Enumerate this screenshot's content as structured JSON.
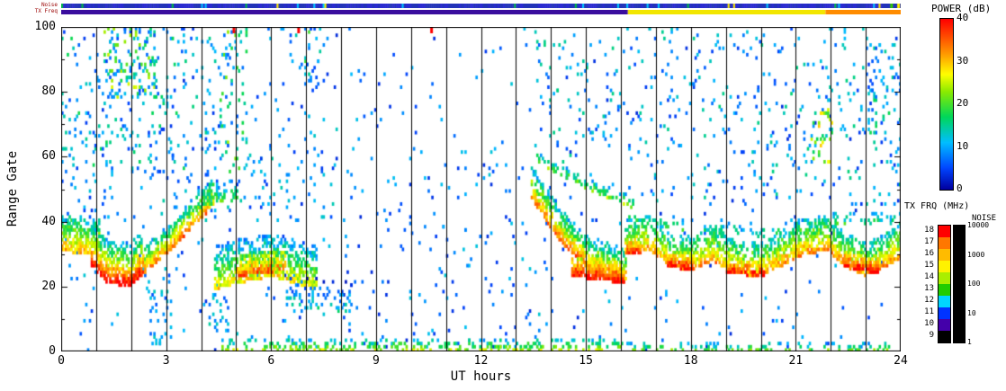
{
  "chart_data": {
    "type": "heatmap",
    "title": "",
    "xlabel": "UT hours",
    "ylabel": "Range Gate",
    "xlim": [
      0,
      24
    ],
    "ylim": [
      0,
      100
    ],
    "xticks": [
      0,
      3,
      6,
      9,
      12,
      15,
      18,
      21,
      24
    ],
    "yticks": [
      0,
      20,
      40,
      60,
      80,
      100
    ],
    "grid": "vertical black line every 1 hour",
    "seed": 20240608,
    "power_colormap": [
      [
        0,
        0,
        0,
        160
      ],
      [
        5,
        0,
        70,
        255
      ],
      [
        11,
        0,
        190,
        255
      ],
      [
        17,
        0,
        215,
        90
      ],
      [
        23,
        140,
        235,
        0
      ],
      [
        27,
        255,
        255,
        0
      ],
      [
        32,
        255,
        150,
        0
      ],
      [
        40,
        255,
        0,
        0
      ]
    ],
    "colorbars": {
      "power": {
        "label": "POWER (dB)",
        "min": 0,
        "max": 40,
        "ticks": [
          40,
          30,
          20,
          10,
          0
        ]
      },
      "tx_frq": {
        "label": "TX FRQ (MHz)",
        "ticks": [
          18,
          17,
          16,
          15,
          14,
          13,
          12,
          11,
          10,
          9
        ],
        "colors_top_to_bottom": [
          "#ff0000",
          "#ff7700",
          "#ffbb00",
          "#fff200",
          "#aaee00",
          "#22cc00",
          "#00d5ff",
          "#0033ff",
          "#4400aa",
          "#000000"
        ]
      },
      "noise": {
        "label": "NOISE",
        "ticks": [
          10000,
          1000,
          100,
          10,
          1
        ],
        "bar_color": "#000000"
      }
    },
    "top_strips": {
      "noise_label": "Noise",
      "tx_freq_label": "TX Freq",
      "noise_base_colors": [
        "#2a2ad0",
        "#2233b8"
      ],
      "noise_marks": [
        {
          "x": 23.7,
          "color": "#33cc00"
        },
        {
          "x": 23.9,
          "color": "#ffee00"
        }
      ],
      "tx_freq_segments": [
        {
          "from": 0,
          "to": 16.2,
          "color": "#3a0d9e"
        },
        {
          "from": 16.2,
          "to": 21.85,
          "color": "#f2e600"
        },
        {
          "from": 21.85,
          "to": 24,
          "color": "#ff8c00"
        }
      ]
    },
    "top_marks": [
      {
        "x": 4.9,
        "color": "#ff0000"
      },
      {
        "x": 6.75,
        "color": "#ff0000"
      },
      {
        "x": 10.55,
        "color": "#ff0000"
      }
    ],
    "features": [
      {
        "x0": 0,
        "x1": 1.15,
        "pts": [
          [
            0,
            31
          ],
          [
            1.15,
            29
          ]
        ],
        "span": 11,
        "peak": 31,
        "edge": 12,
        "density": 0.8
      },
      {
        "x0": 0.85,
        "x1": 2.35,
        "pts": [
          [
            0.85,
            26
          ],
          [
            1.3,
            21
          ],
          [
            1.9,
            20
          ],
          [
            2.35,
            24
          ]
        ],
        "span": 13,
        "peak": 40,
        "edge": 10,
        "density": 0.85
      },
      {
        "x0": 2.35,
        "x1": 4.35,
        "pts": [
          [
            2.35,
            24
          ],
          [
            3.0,
            30
          ],
          [
            3.7,
            38
          ],
          [
            4.35,
            45
          ]
        ],
        "span": 8,
        "peak": 33,
        "edge": 12,
        "density": 0.8
      },
      {
        "x0": 3.9,
        "x1": 5.1,
        "pts": [
          [
            3.9,
            44
          ],
          [
            5.1,
            47
          ]
        ],
        "span": 6,
        "peak": 20,
        "edge": 8,
        "density": 0.45
      },
      {
        "x0": 4.35,
        "x1": 7.3,
        "pts": [
          [
            4.35,
            19
          ],
          [
            5.0,
            21
          ],
          [
            6.0,
            23
          ],
          [
            7.3,
            19
          ]
        ],
        "span": 13,
        "peak": 28,
        "edge": 8,
        "density": 0.75
      },
      {
        "x0": 5.0,
        "x1": 6.4,
        "pts": [
          [
            5.0,
            23
          ],
          [
            6.4,
            25
          ]
        ],
        "span": 6,
        "peak": 35,
        "edge": 20,
        "density": 0.8
      },
      {
        "x0": 6.4,
        "x1": 8.3,
        "pts": [
          [
            6.4,
            14
          ],
          [
            8.3,
            12
          ]
        ],
        "span": 9,
        "peak": 13,
        "edge": 4,
        "density": 0.3
      },
      {
        "x0": 13.4,
        "x1": 16.15,
        "pts": [
          [
            13.4,
            47
          ],
          [
            14.3,
            33
          ],
          [
            15.1,
            25
          ],
          [
            16.15,
            21
          ]
        ],
        "span": 10,
        "peak": 34,
        "edge": 10,
        "density": 0.8
      },
      {
        "x0": 14.6,
        "x1": 16.1,
        "pts": [
          [
            14.6,
            23
          ],
          [
            16.1,
            21
          ]
        ],
        "span": 6,
        "peak": 40,
        "edge": 24,
        "density": 0.9
      },
      {
        "x0": 13.6,
        "x1": 16.35,
        "pts": [
          [
            13.6,
            58
          ],
          [
            15.0,
            50
          ],
          [
            16.35,
            44
          ]
        ],
        "span": 3,
        "peak": 21,
        "edge": 10,
        "density": 0.5
      },
      {
        "x0": 16.1,
        "x1": 24,
        "pts": [
          [
            16.1,
            30
          ],
          [
            16.8,
            31
          ],
          [
            17.4,
            26
          ],
          [
            18.0,
            25
          ],
          [
            18.6,
            28
          ],
          [
            19.2,
            24
          ],
          [
            19.9,
            23
          ],
          [
            20.5,
            26
          ],
          [
            21.2,
            30
          ],
          [
            21.9,
            31
          ],
          [
            22.4,
            26
          ],
          [
            23.0,
            23
          ],
          [
            23.5,
            26
          ],
          [
            24,
            29
          ]
        ],
        "span": 10,
        "peak": 32,
        "edge": 12,
        "density": 0.8
      },
      {
        "x0": 16.15,
        "x1": 16.65,
        "pts": [
          [
            16.15,
            30
          ],
          [
            16.65,
            30
          ]
        ],
        "span": 4,
        "peak": 38,
        "edge": 26,
        "density": 0.85
      },
      {
        "x0": 17.3,
        "x1": 18.05,
        "pts": [
          [
            17.3,
            26
          ],
          [
            18.05,
            25
          ]
        ],
        "span": 4,
        "peak": 40,
        "edge": 26,
        "density": 0.85
      },
      {
        "x0": 19.0,
        "x1": 20.1,
        "pts": [
          [
            19.0,
            24
          ],
          [
            20.1,
            23
          ]
        ],
        "span": 4,
        "peak": 40,
        "edge": 26,
        "density": 0.85
      },
      {
        "x0": 22.35,
        "x1": 23.35,
        "pts": [
          [
            22.35,
            26
          ],
          [
            23.35,
            24
          ]
        ],
        "span": 4,
        "peak": 40,
        "edge": 26,
        "density": 0.85
      },
      {
        "x0": 16.2,
        "x1": 24,
        "pts": [
          [
            16.2,
            40
          ],
          [
            18,
            37
          ],
          [
            20,
            35
          ],
          [
            22,
            39
          ],
          [
            24,
            39
          ]
        ],
        "span": 4,
        "peak": 17,
        "edge": 8,
        "density": 0.22
      },
      {
        "x0": 4.6,
        "x1": 16.1,
        "pts": [
          [
            4.6,
            0
          ],
          [
            16.1,
            0
          ]
        ],
        "span": 4,
        "peak": 24,
        "edge": 8,
        "density": 0.4
      },
      {
        "x0": 16.1,
        "x1": 24,
        "pts": [
          [
            16.1,
            0
          ],
          [
            24,
            0
          ]
        ],
        "span": 3,
        "peak": 20,
        "edge": 6,
        "density": 0.28
      }
    ],
    "regions": [
      {
        "x0": 0,
        "x1": 3.6,
        "g0": 55,
        "g1": 100,
        "density": 0.05,
        "p0": 4,
        "p1": 18
      },
      {
        "x0": 1.2,
        "x1": 2.7,
        "g0": 78,
        "g1": 100,
        "density": 0.16,
        "p0": 6,
        "p1": 26
      },
      {
        "x0": 4.5,
        "x1": 5.3,
        "g0": 55,
        "g1": 100,
        "density": 0.1,
        "p0": 6,
        "p1": 24
      },
      {
        "x0": 6.5,
        "x1": 7.4,
        "g0": 80,
        "g1": 100,
        "density": 0.09,
        "p0": 5,
        "p1": 20
      },
      {
        "x0": 0,
        "x1": 24,
        "g0": 0,
        "g1": 100,
        "density": 0.013,
        "p0": 3,
        "p1": 13
      },
      {
        "x0": 16,
        "x1": 24,
        "g0": 45,
        "g1": 100,
        "density": 0.028,
        "p0": 4,
        "p1": 16
      },
      {
        "x0": 13.5,
        "x1": 16,
        "g0": 58,
        "g1": 100,
        "density": 0.04,
        "p0": 4,
        "p1": 16
      },
      {
        "x0": 21.4,
        "x1": 22.05,
        "g0": 58,
        "g1": 75,
        "density": 0.18,
        "p0": 8,
        "p1": 30
      },
      {
        "x0": 23.0,
        "x1": 24,
        "g0": 55,
        "g1": 95,
        "density": 0.07,
        "p0": 5,
        "p1": 18
      },
      {
        "x0": 8,
        "x1": 13.4,
        "g0": 0,
        "g1": 60,
        "density": 0.012,
        "p0": 3,
        "p1": 12
      },
      {
        "x0": 3.6,
        "x1": 4.4,
        "g0": 60,
        "g1": 100,
        "density": 0.05,
        "p0": 4,
        "p1": 16
      },
      {
        "x0": 0,
        "x1": 8,
        "g0": 40,
        "g1": 70,
        "density": 0.03,
        "p0": 4,
        "p1": 15
      },
      {
        "x0": 2.4,
        "x1": 3.2,
        "g0": 2,
        "g1": 22,
        "density": 0.12,
        "p0": 5,
        "p1": 14
      },
      {
        "x0": 4.2,
        "x1": 4.8,
        "g0": 6,
        "g1": 18,
        "density": 0.15,
        "p0": 6,
        "p1": 16
      }
    ]
  }
}
